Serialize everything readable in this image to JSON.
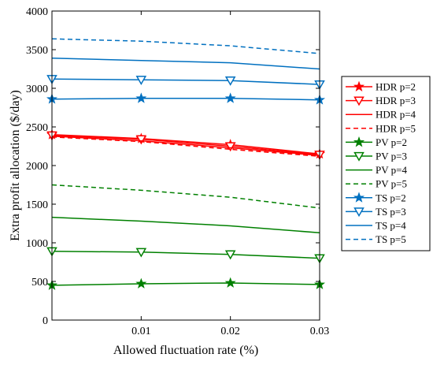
{
  "chart_data": {
    "type": "line",
    "title": "",
    "xlabel": "Allowed fluctuation rate (%)",
    "ylabel": "Extra profit allocation ($/day)",
    "x": [
      0,
      0.01,
      0.02,
      0.03
    ],
    "xlim": [
      0,
      0.03
    ],
    "ylim": [
      0,
      4000
    ],
    "x_ticks": [
      "0.01",
      "0.02",
      "0.03"
    ],
    "y_ticks": [
      "0",
      "500",
      "1000",
      "1500",
      "2000",
      "2500",
      "3000",
      "3500",
      "4000"
    ],
    "grid": false,
    "legend_position": "right, outside plot",
    "series": [
      {
        "name": "HDR p=2",
        "color": "#ff0000",
        "marker": "star",
        "dash": "solid",
        "values": [
          2400,
          2350,
          2270,
          2150
        ]
      },
      {
        "name": "HDR p=3",
        "color": "#ff0000",
        "marker": "triangle-down",
        "dash": "solid",
        "values": [
          2390,
          2340,
          2250,
          2140
        ]
      },
      {
        "name": "HDR p=4",
        "color": "#ff0000",
        "marker": "none",
        "dash": "solid",
        "values": [
          2380,
          2320,
          2230,
          2130
        ]
      },
      {
        "name": "HDR p=5",
        "color": "#ff0000",
        "marker": "none",
        "dash": "dashed",
        "values": [
          2370,
          2310,
          2210,
          2120
        ]
      },
      {
        "name": "PV p=2",
        "color": "#008000",
        "marker": "star",
        "dash": "solid",
        "values": [
          450,
          470,
          480,
          460
        ]
      },
      {
        "name": "PV p=3",
        "color": "#008000",
        "marker": "triangle-down",
        "dash": "solid",
        "values": [
          890,
          880,
          850,
          800
        ]
      },
      {
        "name": "PV p=4",
        "color": "#008000",
        "marker": "none",
        "dash": "solid",
        "values": [
          1330,
          1280,
          1220,
          1130
        ]
      },
      {
        "name": "PV p=5",
        "color": "#008000",
        "marker": "none",
        "dash": "dashed",
        "values": [
          1750,
          1680,
          1590,
          1450
        ]
      },
      {
        "name": "TS p=2",
        "color": "#0070c0",
        "marker": "star",
        "dash": "solid",
        "values": [
          2860,
          2870,
          2870,
          2850
        ]
      },
      {
        "name": "TS p=3",
        "color": "#0070c0",
        "marker": "triangle-down",
        "dash": "solid",
        "values": [
          3120,
          3110,
          3100,
          3050
        ]
      },
      {
        "name": "TS p=4",
        "color": "#0070c0",
        "marker": "none",
        "dash": "solid",
        "values": [
          3390,
          3360,
          3330,
          3250
        ]
      },
      {
        "name": "TS p=5",
        "color": "#0070c0",
        "marker": "none",
        "dash": "dashed",
        "values": [
          3640,
          3610,
          3550,
          3450
        ]
      }
    ]
  }
}
